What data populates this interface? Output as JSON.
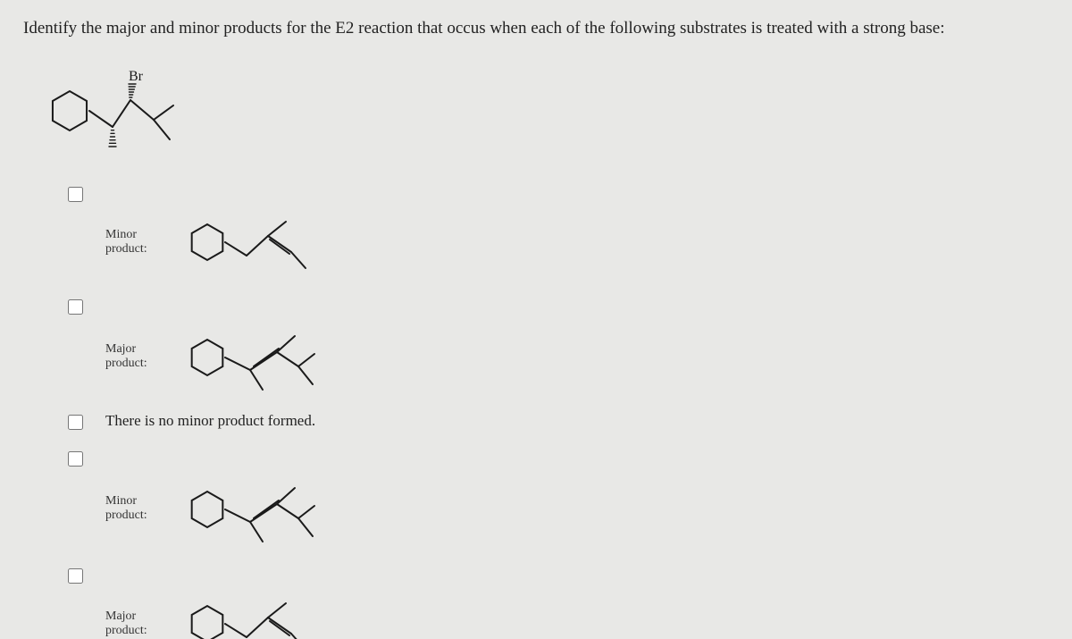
{
  "question": "Identify the major and minor products for the E2 reaction that occus when each of the following substrates is treated with a strong base:",
  "substrate": {
    "br_label": "Br",
    "stroke": "#1a1a1a",
    "stroke_width": 2,
    "width": 150,
    "height": 110
  },
  "options": [
    {
      "id": "opt1",
      "type": "structure",
      "label_line1": "Minor",
      "label_line2": "product:",
      "structure": "alkene_less_sub",
      "stroke": "#1a1a1a"
    },
    {
      "id": "opt2",
      "type": "structure",
      "label_line1": "Major",
      "label_line2": "product:",
      "structure": "alkene_more_sub",
      "stroke": "#1a1a1a"
    },
    {
      "id": "opt3",
      "type": "text",
      "text": "There is no minor product formed."
    },
    {
      "id": "opt4",
      "type": "structure",
      "label_line1": "Minor",
      "label_line2": "product:",
      "structure": "alkene_more_sub",
      "stroke": "#1a1a1a"
    },
    {
      "id": "opt5",
      "type": "structure",
      "label_line1": "Major",
      "label_line2": "product:",
      "structure": "alkene_less_sub",
      "stroke": "#1a1a1a"
    }
  ],
  "checkbox_border": "#555"
}
